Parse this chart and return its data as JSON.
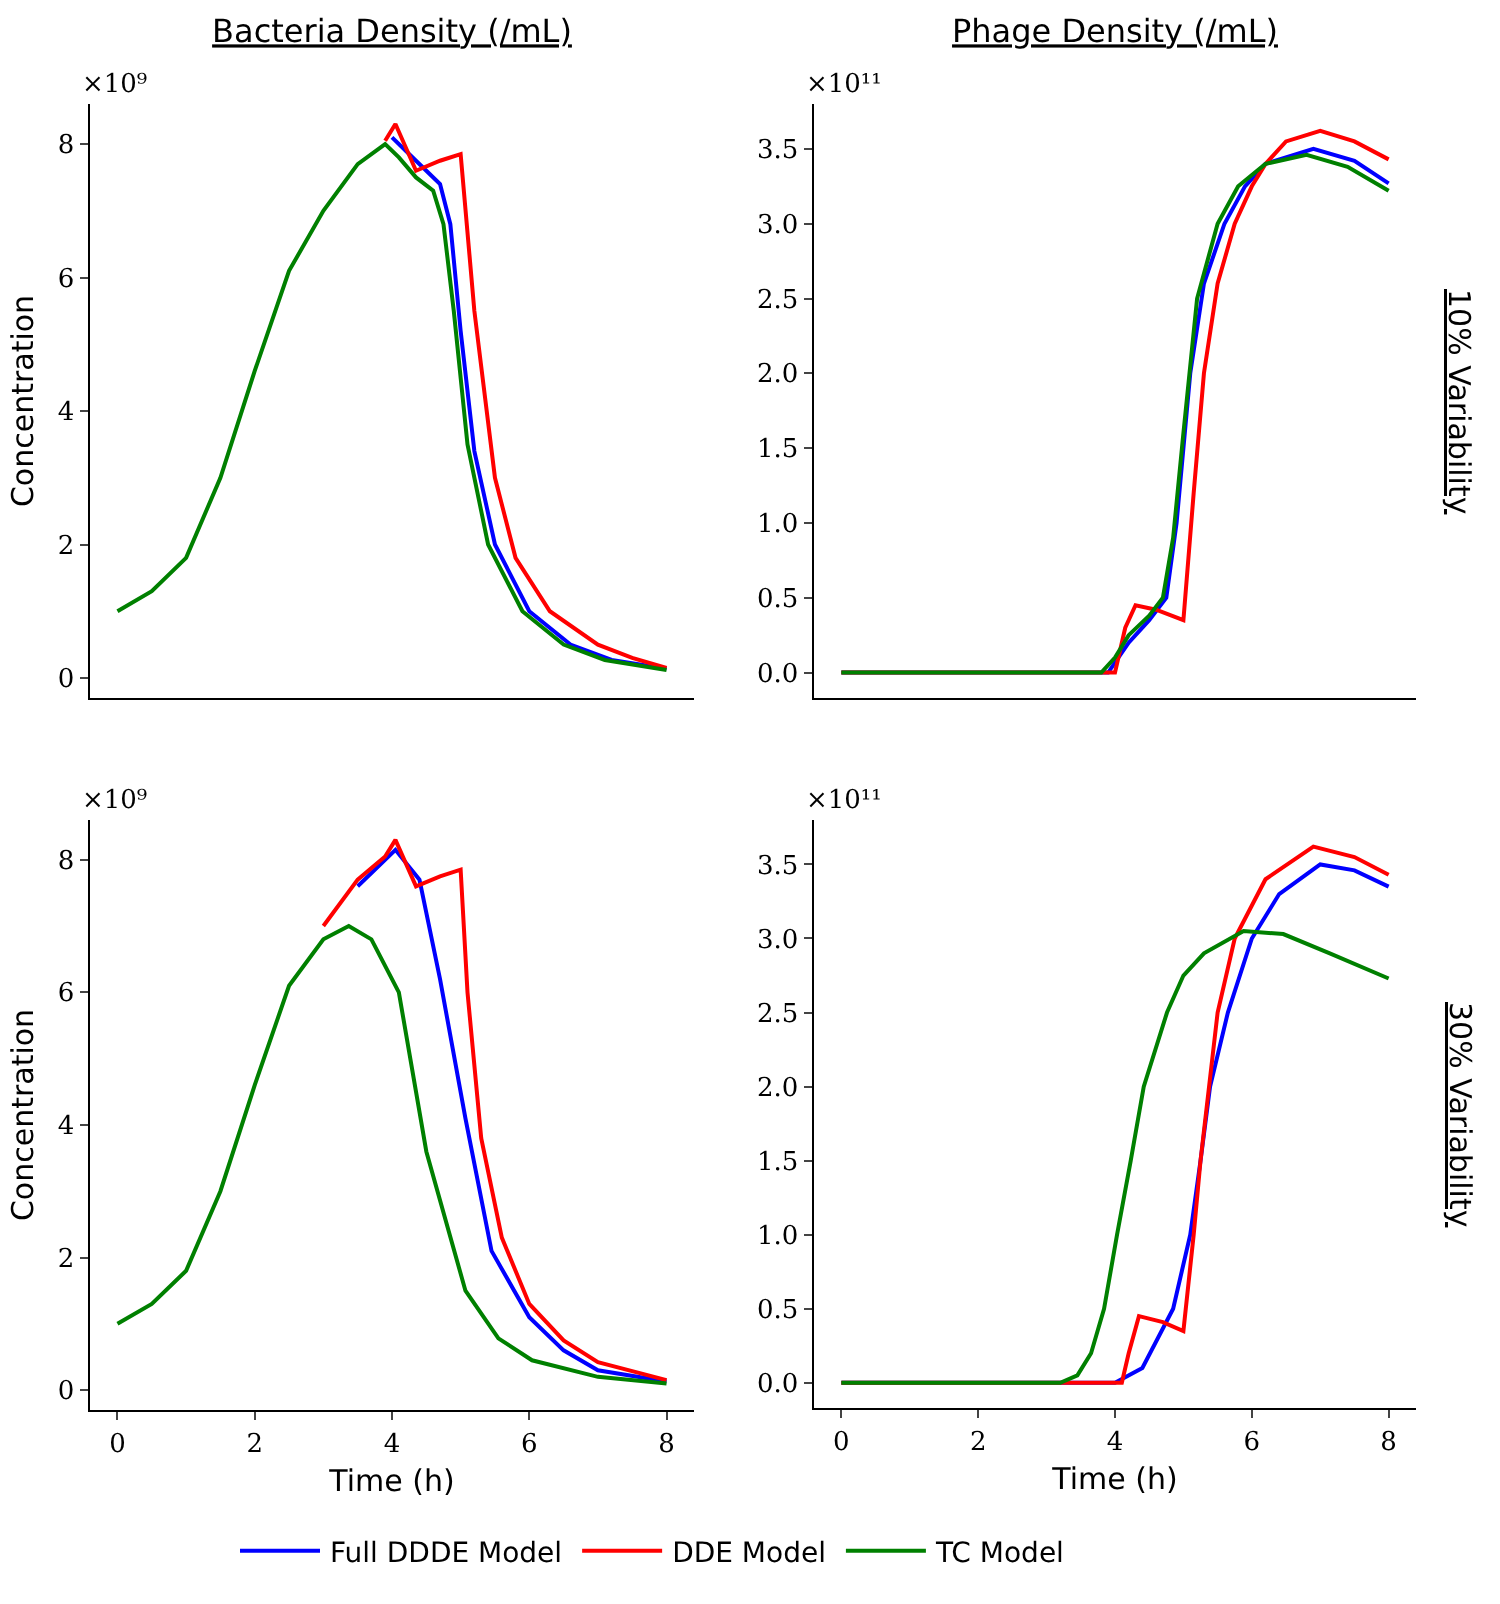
{
  "chart_data": [
    {
      "type": "line",
      "title": "Bacteria Density (/mL)",
      "ylabel": "Concentration",
      "annotations": [
        "×10⁹"
      ],
      "xlim": [
        -0.4,
        8.4
      ],
      "xticks": [
        0,
        2,
        4,
        6,
        8
      ],
      "ylim": [
        -0.3,
        8.6
      ],
      "yticks": [
        0,
        2,
        4,
        6,
        8
      ],
      "tick_labels": "y",
      "grid": false,
      "marker": "none",
      "line_style": "solid",
      "series": [
        {
          "color": "#0000ff",
          "x": [
            4.0,
            4.2,
            4.5,
            4.7,
            4.85,
            5.0,
            5.2,
            5.5,
            6.0,
            6.6,
            7.2,
            8
          ],
          "values": [
            8.1,
            7.9,
            7.6,
            7.4,
            6.8,
            5.2,
            3.4,
            2.0,
            1.0,
            0.5,
            0.27,
            0.14
          ]
        },
        {
          "color": "#ff0000",
          "x": [
            3.9,
            4.05,
            4.35,
            4.7,
            5.0,
            5.2,
            5.5,
            5.8,
            6.3,
            7.0,
            7.5,
            8
          ],
          "values": [
            8.05,
            8.3,
            7.6,
            7.75,
            7.85,
            5.5,
            3.0,
            1.8,
            1.0,
            0.5,
            0.3,
            0.15
          ]
        },
        {
          "color": "#008000",
          "x": [
            0,
            0.5,
            1,
            1.5,
            2,
            2.5,
            3,
            3.5,
            3.9,
            4.1,
            4.35,
            4.6,
            4.75,
            4.9,
            5.1,
            5.4,
            5.9,
            6.5,
            7.1,
            8
          ],
          "values": [
            1.0,
            1.3,
            1.8,
            3.0,
            4.6,
            6.1,
            7.0,
            7.7,
            8.0,
            7.8,
            7.5,
            7.3,
            6.8,
            5.5,
            3.5,
            2.0,
            1.0,
            0.5,
            0.27,
            0.12
          ]
        }
      ]
    },
    {
      "type": "line",
      "title": "Phage Density (/mL)",
      "annotations": [
        "×10¹¹",
        "10% Variability"
      ],
      "xlim": [
        -0.4,
        8.4
      ],
      "xticks": [
        0,
        2,
        4,
        6,
        8
      ],
      "ylim": [
        -0.17,
        3.8
      ],
      "yticks": [
        {
          "value": 0,
          "label": "0.0"
        },
        0.5,
        {
          "value": 1,
          "label": "1.0"
        },
        1.5,
        {
          "value": 2,
          "label": "2.0"
        },
        2.5,
        {
          "value": 3,
          "label": "3.0"
        },
        3.5
      ],
      "tick_labels": "y",
      "grid": false,
      "marker": "none",
      "line_style": "solid",
      "series": [
        {
          "color": "#0000ff",
          "x": [
            0,
            3.9,
            4.2,
            4.5,
            4.75,
            4.9,
            5.1,
            5.3,
            5.6,
            5.9,
            6.2,
            6.9,
            7.5,
            8
          ],
          "values": [
            0,
            0,
            0.2,
            0.35,
            0.5,
            1.0,
            2.0,
            2.6,
            3.0,
            3.25,
            3.4,
            3.5,
            3.42,
            3.27
          ]
        },
        {
          "color": "#ff0000",
          "x": [
            0,
            4.0,
            4.15,
            4.3,
            4.6,
            5.0,
            5.15,
            5.3,
            5.5,
            5.75,
            6.0,
            6.2,
            6.5,
            7.0,
            7.5,
            8
          ],
          "values": [
            0,
            0,
            0.3,
            0.45,
            0.42,
            0.35,
            1.2,
            2.0,
            2.6,
            3.0,
            3.25,
            3.4,
            3.55,
            3.62,
            3.55,
            3.43
          ]
        },
        {
          "color": "#008000",
          "x": [
            0,
            3.8,
            4.0,
            4.2,
            4.5,
            4.7,
            4.85,
            5.0,
            5.2,
            5.5,
            5.8,
            6.2,
            6.8,
            7.4,
            8
          ],
          "values": [
            0,
            0,
            0.1,
            0.25,
            0.38,
            0.5,
            0.9,
            1.6,
            2.5,
            3.0,
            3.25,
            3.4,
            3.46,
            3.38,
            3.22
          ]
        }
      ]
    },
    {
      "type": "line",
      "xlabel": "Time (h)",
      "ylabel": "Concentration",
      "annotations": [
        "×10⁹"
      ],
      "xlim": [
        -0.4,
        8.4
      ],
      "xticks": [
        0,
        2,
        4,
        6,
        8
      ],
      "ylim": [
        -0.3,
        8.6
      ],
      "yticks": [
        0,
        2,
        4,
        6,
        8
      ],
      "grid": false,
      "marker": "none",
      "line_style": "solid",
      "series": [
        {
          "color": "#0000ff",
          "x": [
            3.5,
            4.05,
            4.4,
            4.7,
            5.07,
            5.45,
            6.0,
            6.5,
            7.0,
            8
          ],
          "values": [
            7.6,
            8.15,
            7.7,
            6.2,
            4.1,
            2.1,
            1.1,
            0.6,
            0.3,
            0.13
          ]
        },
        {
          "color": "#ff0000",
          "x": [
            3,
            3.5,
            3.9,
            4.05,
            4.35,
            4.7,
            5.0,
            5.1,
            5.3,
            5.6,
            6.0,
            6.5,
            7.0,
            8
          ],
          "values": [
            7.0,
            7.7,
            8.05,
            8.3,
            7.6,
            7.75,
            7.85,
            6.0,
            3.8,
            2.3,
            1.3,
            0.75,
            0.42,
            0.15
          ]
        },
        {
          "color": "#008000",
          "x": [
            0,
            0.5,
            1,
            1.5,
            2,
            2.5,
            3,
            3.37,
            3.7,
            4.1,
            4.5,
            5.07,
            5.55,
            6.04,
            7,
            8
          ],
          "values": [
            1.0,
            1.3,
            1.8,
            3.0,
            4.6,
            6.1,
            6.8,
            7.0,
            6.8,
            6.0,
            3.6,
            1.5,
            0.78,
            0.45,
            0.2,
            0.1
          ]
        }
      ]
    },
    {
      "type": "line",
      "xlabel": "Time (h)",
      "annotations": [
        "×10¹¹",
        "30% Variability"
      ],
      "xlim": [
        -0.4,
        8.4
      ],
      "xticks": [
        0,
        2,
        4,
        6,
        8
      ],
      "ylim": [
        -0.17,
        3.8
      ],
      "yticks": [
        {
          "value": 0,
          "label": "0.0"
        },
        0.5,
        {
          "value": 1,
          "label": "1.0"
        },
        1.5,
        {
          "value": 2,
          "label": "2.0"
        },
        2.5,
        {
          "value": 3,
          "label": "3.0"
        },
        3.5
      ],
      "grid": false,
      "legend": "bottom",
      "marker": "none",
      "line_style": "solid",
      "series": [
        {
          "name": "Full DDDE Model",
          "color": "#0000ff",
          "x": [
            0,
            4.0,
            4.4,
            4.85,
            5.1,
            5.25,
            5.39,
            5.65,
            6.0,
            6.4,
            7.0,
            7.5,
            8
          ],
          "values": [
            0,
            0,
            0.1,
            0.5,
            1.0,
            1.5,
            2.0,
            2.5,
            3.0,
            3.3,
            3.5,
            3.46,
            3.35
          ]
        },
        {
          "name": "DDE Model",
          "color": "#ff0000",
          "x": [
            0,
            4.1,
            4.2,
            4.35,
            4.7,
            5.0,
            5.15,
            5.25,
            5.5,
            5.75,
            6.2,
            6.9,
            7.5,
            8
          ],
          "values": [
            0,
            0,
            0.2,
            0.45,
            0.41,
            0.35,
            1.0,
            1.5,
            2.5,
            3.0,
            3.4,
            3.62,
            3.55,
            3.43
          ]
        },
        {
          "name": "TC Model",
          "color": "#008000",
          "x": [
            0,
            3.2,
            3.45,
            3.65,
            3.84,
            4.03,
            4.23,
            4.42,
            4.76,
            5.0,
            5.3,
            5.88,
            6.46,
            7.14,
            8
          ],
          "values": [
            0,
            0,
            0.05,
            0.2,
            0.5,
            1.0,
            1.5,
            2.0,
            2.5,
            2.75,
            2.9,
            3.05,
            3.03,
            2.9,
            2.73
          ]
        }
      ]
    }
  ]
}
